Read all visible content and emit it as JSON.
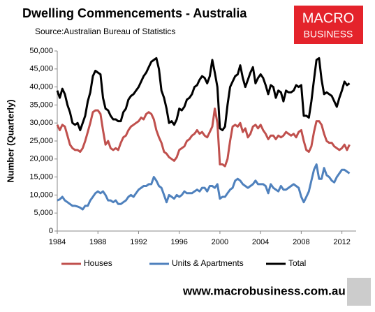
{
  "chart_data": {
    "type": "line",
    "title": "Dwelling Commencements - Australia",
    "subtitle": "Source:Australian Bureau of Statistics",
    "y_label": "Number (Quarterly)",
    "logo": [
      "MACRO",
      "BUSINESS"
    ],
    "footer": "www.macrobusiness.com.au",
    "x": [
      1984,
      1984.25,
      1984.5,
      1984.75,
      1985,
      1985.25,
      1985.5,
      1985.75,
      1986,
      1986.25,
      1986.5,
      1986.75,
      1987,
      1987.25,
      1987.5,
      1987.75,
      1988,
      1988.25,
      1988.5,
      1988.75,
      1989,
      1989.25,
      1989.5,
      1989.75,
      1990,
      1990.25,
      1990.5,
      1990.75,
      1991,
      1991.25,
      1991.5,
      1991.75,
      1992,
      1992.25,
      1992.5,
      1992.75,
      1993,
      1993.25,
      1993.5,
      1993.75,
      1994,
      1994.25,
      1994.5,
      1994.75,
      1995,
      1995.25,
      1995.5,
      1995.75,
      1996,
      1996.25,
      1996.5,
      1996.75,
      1997,
      1997.25,
      1997.5,
      1997.75,
      1998,
      1998.25,
      1998.5,
      1998.75,
      1999,
      1999.25,
      1999.5,
      1999.75,
      2000,
      2000.25,
      2000.5,
      2000.75,
      2001,
      2001.25,
      2001.5,
      2001.75,
      2002,
      2002.25,
      2002.5,
      2002.75,
      2003,
      2003.25,
      2003.5,
      2003.75,
      2004,
      2004.25,
      2004.5,
      2004.75,
      2005,
      2005.25,
      2005.5,
      2005.75,
      2006,
      2006.25,
      2006.5,
      2006.75,
      2007,
      2007.25,
      2007.5,
      2007.75,
      2008,
      2008.25,
      2008.5,
      2008.75,
      2009,
      2009.25,
      2009.5,
      2009.75,
      2010,
      2010.25,
      2010.5,
      2010.75,
      2011,
      2011.25,
      2011.5,
      2011.75,
      2012,
      2012.25,
      2012.5,
      2012.75
    ],
    "series": [
      {
        "name": "Houses",
        "color": "#c0504d",
        "values": [
          29500,
          28000,
          29500,
          29000,
          26500,
          24000,
          23000,
          22500,
          22500,
          22000,
          23000,
          25000,
          27500,
          30000,
          33000,
          33500,
          33500,
          32500,
          28000,
          24000,
          25000,
          23000,
          22500,
          23000,
          22500,
          24500,
          26000,
          26500,
          28000,
          29000,
          29500,
          30000,
          30500,
          31500,
          31000,
          32500,
          33000,
          32500,
          31000,
          28000,
          26000,
          24500,
          22000,
          21500,
          20500,
          20000,
          19500,
          20500,
          22500,
          23000,
          23500,
          25000,
          25500,
          26500,
          27000,
          28000,
          27000,
          27500,
          26500,
          26000,
          27500,
          29000,
          34000,
          30000,
          18500,
          18500,
          18000,
          20000,
          25000,
          29000,
          29500,
          29000,
          30000,
          27500,
          28500,
          26000,
          27000,
          29000,
          29500,
          28500,
          29500,
          28000,
          27000,
          25500,
          26500,
          26500,
          25500,
          26500,
          26000,
          26500,
          27500,
          27000,
          26500,
          27000,
          26000,
          27500,
          28000,
          25000,
          22500,
          22000,
          23500,
          27500,
          30500,
          30500,
          29500,
          27000,
          25000,
          24500,
          24500,
          23500,
          23000,
          22500,
          23000,
          24000,
          22500,
          24000
        ]
      },
      {
        "name": "Units & Apartments",
        "color": "#4f81bd",
        "values": [
          8500,
          8800,
          9500,
          8500,
          8000,
          7500,
          7000,
          7000,
          6800,
          6500,
          6000,
          7000,
          7000,
          8500,
          9500,
          10500,
          11000,
          10500,
          11000,
          10000,
          8500,
          8500,
          8000,
          8500,
          7500,
          7500,
          8000,
          8500,
          9500,
          10000,
          9500,
          10500,
          11500,
          12000,
          12500,
          12500,
          13000,
          13000,
          15000,
          14000,
          12500,
          12000,
          10000,
          8000,
          10000,
          9500,
          9000,
          10000,
          9500,
          10000,
          11000,
          10500,
          10500,
          10500,
          11000,
          11500,
          11000,
          12000,
          12000,
          11000,
          12500,
          12500,
          12000,
          13000,
          9000,
          9500,
          9500,
          10500,
          11500,
          12000,
          14000,
          14500,
          14000,
          13000,
          12500,
          12000,
          12500,
          13000,
          14000,
          13000,
          13000,
          13000,
          12500,
          10500,
          13000,
          12000,
          11500,
          11000,
          12500,
          11500,
          11500,
          12000,
          12500,
          13000,
          12500,
          12000,
          9500,
          8000,
          9500,
          11000,
          14000,
          17000,
          18500,
          14500,
          14500,
          17500,
          15500,
          15000,
          14000,
          13500,
          15000,
          16000,
          17000,
          17000,
          16500,
          16000
        ]
      },
      {
        "name": "Total",
        "color": "#000000",
        "values": [
          39000,
          37000,
          39500,
          38000,
          35000,
          33000,
          30000,
          29500,
          30000,
          28000,
          30000,
          32000,
          36000,
          38500,
          43000,
          44500,
          44000,
          43500,
          37000,
          34000,
          33500,
          32000,
          31000,
          31000,
          30500,
          30500,
          33000,
          34000,
          36500,
          37500,
          38000,
          39000,
          40000,
          41500,
          43000,
          44000,
          45500,
          47000,
          47500,
          48000,
          45000,
          39000,
          37000,
          34000,
          30000,
          30500,
          29500,
          31000,
          34000,
          33500,
          34500,
          36500,
          37000,
          38000,
          40000,
          40500,
          42000,
          43000,
          42500,
          41000,
          43000,
          47500,
          44000,
          40000,
          28500,
          28000,
          29000,
          35000,
          40000,
          41500,
          43000,
          43500,
          46000,
          42500,
          40000,
          42000,
          44000,
          45500,
          41000,
          42500,
          43500,
          42500,
          40500,
          38000,
          40500,
          40000,
          37000,
          39000,
          38500,
          36000,
          39000,
          38500,
          38500,
          39000,
          40500,
          40000,
          40500,
          32000,
          32000,
          31500,
          36000,
          42000,
          47500,
          48000,
          42000,
          38000,
          38500,
          38000,
          37500,
          36000,
          34500,
          37000,
          39000,
          41500,
          40500,
          41000
        ]
      }
    ],
    "xlim": [
      1984,
      2013.4
    ],
    "xticks": [
      1984,
      1988,
      1992,
      1996,
      2000,
      2004,
      2008,
      2012
    ],
    "ylim": [
      0,
      50000
    ],
    "yticks": [
      0,
      {
        "value": 5000,
        "label": "5,000"
      },
      {
        "value": 10000,
        "label": "10,000"
      },
      {
        "value": 15000,
        "label": "15,000"
      },
      {
        "value": 20000,
        "label": "20,000"
      },
      {
        "value": 25000,
        "label": "25,000"
      },
      {
        "value": 30000,
        "label": "30,000"
      },
      {
        "value": 35000,
        "label": "35,000"
      },
      {
        "value": 40000,
        "label": "40,000"
      },
      {
        "value": 45000,
        "label": "45,000"
      },
      {
        "value": 50000,
        "label": "50,000"
      }
    ],
    "grid": false
  }
}
